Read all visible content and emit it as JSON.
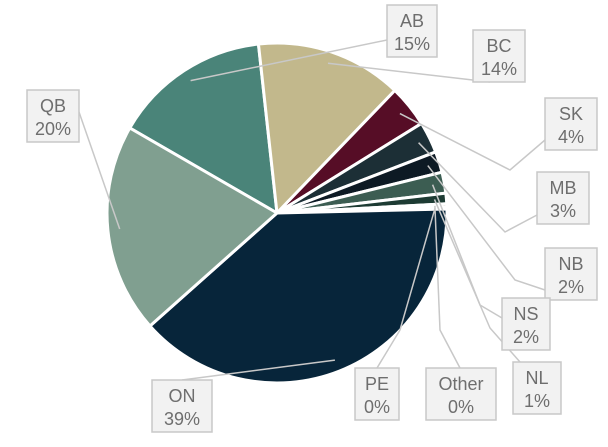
{
  "chart_data": {
    "type": "pie",
    "title": "",
    "slices": [
      {
        "label": "AB",
        "value": 15,
        "value_label": "15%",
        "color": "#4a8479"
      },
      {
        "label": "BC",
        "value": 14,
        "value_label": "14%",
        "color": "#c2b88c"
      },
      {
        "label": "SK",
        "value": 4,
        "value_label": "4%",
        "color": "#560d26"
      },
      {
        "label": "MB",
        "value": 3,
        "value_label": "3%",
        "color": "#1c2f36"
      },
      {
        "label": "NB",
        "value": 2,
        "value_label": "2%",
        "color": "#0d1a24"
      },
      {
        "label": "NS",
        "value": 2,
        "value_label": "2%",
        "color": "#3c5d52"
      },
      {
        "label": "NL",
        "value": 1,
        "value_label": "1%",
        "color": "#1d3b33"
      },
      {
        "label": "Other",
        "value": 0.3,
        "value_label": "0%",
        "color": "#8f8a66"
      },
      {
        "label": "PE",
        "value": 0.2,
        "value_label": "0%",
        "color": "#1f3a40"
      },
      {
        "label": "ON",
        "value": 39,
        "value_label": "39%",
        "color": "#07253a"
      },
      {
        "label": "QB",
        "value": 20,
        "value_label": "20%",
        "color": "#809f90"
      }
    ],
    "callout_border_color": "#c8c8c8",
    "callout_fill_color": "#f2f2f2",
    "leader_line_color": "#c8c8c8",
    "text_color": "#6e6e6e"
  }
}
